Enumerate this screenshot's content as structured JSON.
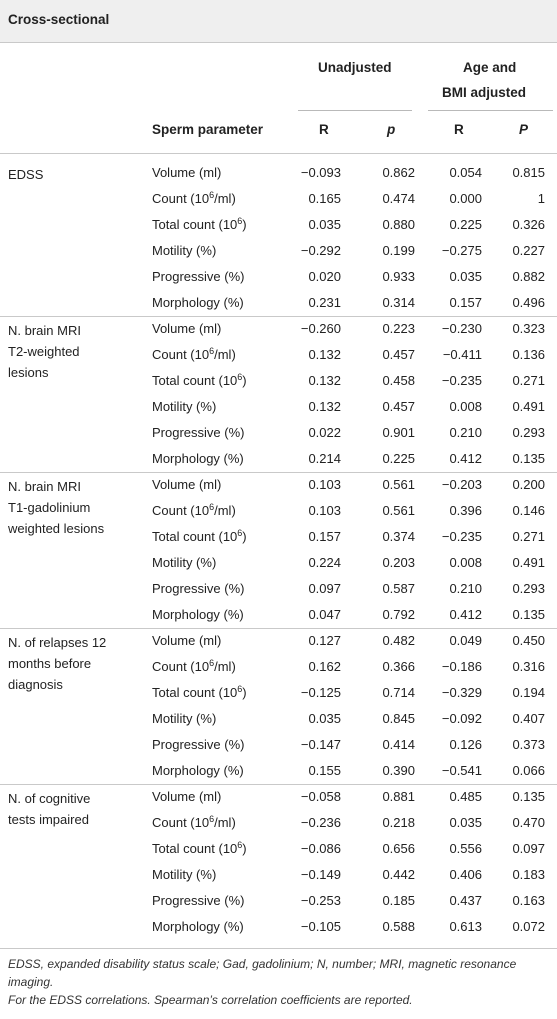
{
  "title": "Cross-sectional",
  "headers": {
    "unadjusted": "Unadjusted",
    "adjusted_line1": "Age and",
    "adjusted_line2": "BMI adjusted",
    "sperm_parameter": "Sperm parameter",
    "r1": "R",
    "p1": "p",
    "r2": "R",
    "p2": "P"
  },
  "groups": [
    {
      "label": [
        "EDSS"
      ],
      "rows": [
        {
          "param": "Volume (ml)",
          "r": "−0.093",
          "p": "0.862",
          "ra": "0.054",
          "pa": "0.815"
        },
        {
          "param": "Count (10<sup>6</sup>/ml)",
          "r": "0.165",
          "p": "0.474",
          "ra": "0.000",
          "pa": "1"
        },
        {
          "param": "Total count (10<sup>6</sup>)",
          "r": "0.035",
          "p": "0.880",
          "ra": "0.225",
          "pa": "0.326"
        },
        {
          "param": "Motility (%)",
          "r": "−0.292",
          "p": "0.199",
          "ra": "−0.275",
          "pa": "0.227"
        },
        {
          "param": "Progressive (%)",
          "r": "0.020",
          "p": "0.933",
          "ra": "0.035",
          "pa": "0.882"
        },
        {
          "param": "Morphology (%)",
          "r": "0.231",
          "p": "0.314",
          "ra": "0.157",
          "pa": "0.496"
        }
      ]
    },
    {
      "label": [
        "N. brain MRI",
        "T2-weighted",
        "lesions"
      ],
      "rows": [
        {
          "param": "Volume (ml)",
          "r": "−0.260",
          "p": "0.223",
          "ra": "−0.230",
          "pa": "0.323"
        },
        {
          "param": "Count (10<sup>6</sup>/ml)",
          "r": "0.132",
          "p": "0.457",
          "ra": "−0.411",
          "pa": "0.136"
        },
        {
          "param": "Total count (10<sup>6</sup>)",
          "r": "0.132",
          "p": "0.458",
          "ra": "−0.235",
          "pa": "0.271"
        },
        {
          "param": "Motility (%)",
          "r": "0.132",
          "p": "0.457",
          "ra": "0.008",
          "pa": "0.491"
        },
        {
          "param": "Progressive (%)",
          "r": "0.022",
          "p": "0.901",
          "ra": "0.210",
          "pa": "0.293"
        },
        {
          "param": "Morphology (%)",
          "r": "0.214",
          "p": "0.225",
          "ra": "0.412",
          "pa": "0.135"
        }
      ]
    },
    {
      "label": [
        "N. brain MRI",
        "T1-gadolinium",
        "weighted lesions"
      ],
      "rows": [
        {
          "param": "Volume (ml)",
          "r": "0.103",
          "p": "0.561",
          "ra": "−0.203",
          "pa": "0.200"
        },
        {
          "param": "Count (10<sup>6</sup>/ml)",
          "r": "0.103",
          "p": "0.561",
          "ra": "0.396",
          "pa": "0.146"
        },
        {
          "param": "Total count (10<sup>6</sup>)",
          "r": "0.157",
          "p": "0.374",
          "ra": "−0.235",
          "pa": "0.271"
        },
        {
          "param": "Motility (%)",
          "r": "0.224",
          "p": "0.203",
          "ra": "0.008",
          "pa": "0.491"
        },
        {
          "param": "Progressive (%)",
          "r": "0.097",
          "p": "0.587",
          "ra": "0.210",
          "pa": "0.293"
        },
        {
          "param": "Morphology (%)",
          "r": "0.047",
          "p": "0.792",
          "ra": "0.412",
          "pa": "0.135"
        }
      ]
    },
    {
      "label": [
        "N. of relapses 12",
        "months before",
        "diagnosis"
      ],
      "rows": [
        {
          "param": "Volume (ml)",
          "r": "0.127",
          "p": "0.482",
          "ra": "0.049",
          "pa": "0.450"
        },
        {
          "param": "Count (10<sup>6</sup>/ml)",
          "r": "0.162",
          "p": "0.366",
          "ra": "−0.186",
          "pa": "0.316"
        },
        {
          "param": "Total count (10<sup>6</sup>)",
          "r": "−0.125",
          "p": "0.714",
          "ra": "−0.329",
          "pa": "0.194"
        },
        {
          "param": "Motility (%)",
          "r": "0.035",
          "p": "0.845",
          "ra": "−0.092",
          "pa": "0.407"
        },
        {
          "param": "Progressive (%)",
          "r": "−0.147",
          "p": "0.414",
          "ra": "0.126",
          "pa": "0.373"
        },
        {
          "param": "Morphology (%)",
          "r": "0.155",
          "p": "0.390",
          "ra": "−0.541",
          "pa": "0.066"
        }
      ]
    },
    {
      "label": [
        "N. of cognitive",
        "tests impaired"
      ],
      "rows": [
        {
          "param": "Volume (ml)",
          "r": "−0.058",
          "p": "0.881",
          "ra": "0.485",
          "pa": "0.135"
        },
        {
          "param": "Count (10<sup>6</sup>/ml)",
          "r": "−0.236",
          "p": "0.218",
          "ra": "0.035",
          "pa": "0.470"
        },
        {
          "param": "Total count (10<sup>6</sup>)",
          "r": "−0.086",
          "p": "0.656",
          "ra": "0.556",
          "pa": "0.097"
        },
        {
          "param": "Motility (%)",
          "r": "−0.149",
          "p": "0.442",
          "ra": "0.406",
          "pa": "0.183"
        },
        {
          "param": "Progressive (%)",
          "r": "−0.253",
          "p": "0.185",
          "ra": "0.437",
          "pa": "0.163"
        },
        {
          "param": "Morphology (%)",
          "r": "−0.105",
          "p": "0.588",
          "ra": "0.613",
          "pa": "0.072"
        }
      ]
    }
  ],
  "footnotes": [
    "EDSS, expanded disability status scale; Gad, gadolinium; N, number; MRI, magnetic resonance imaging.",
    "For the EDSS correlations. Spearman’s correlation coefficients are reported."
  ]
}
